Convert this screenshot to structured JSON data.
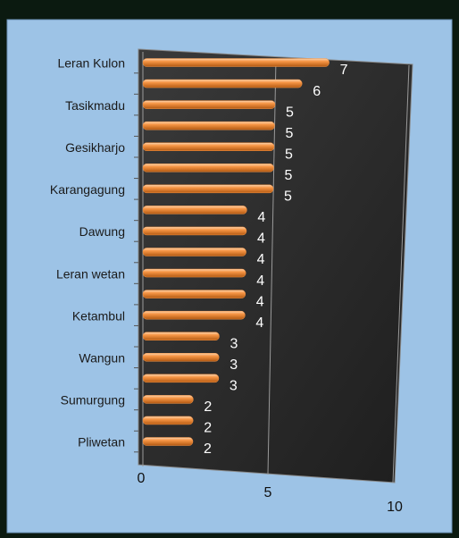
{
  "chart_data": {
    "type": "bar",
    "orientation": "horizontal",
    "categories": [
      "Leran Kulon",
      null,
      "Tasikmadu",
      null,
      "Gesikharjo",
      null,
      "Karangagung",
      null,
      "Dawung",
      null,
      "Leran wetan",
      null,
      "Ketambul",
      null,
      "Wangun",
      null,
      "Sumurgung",
      null,
      "Pliwetan"
    ],
    "values": [
      7,
      6,
      5,
      5,
      5,
      5,
      5,
      4,
      4,
      4,
      4,
      4,
      4,
      3,
      3,
      3,
      2,
      2,
      2
    ],
    "color": "#f79646",
    "xlim": [
      0,
      10
    ],
    "xticks": [
      0,
      5,
      10
    ],
    "grid": true,
    "data_labels": true
  }
}
